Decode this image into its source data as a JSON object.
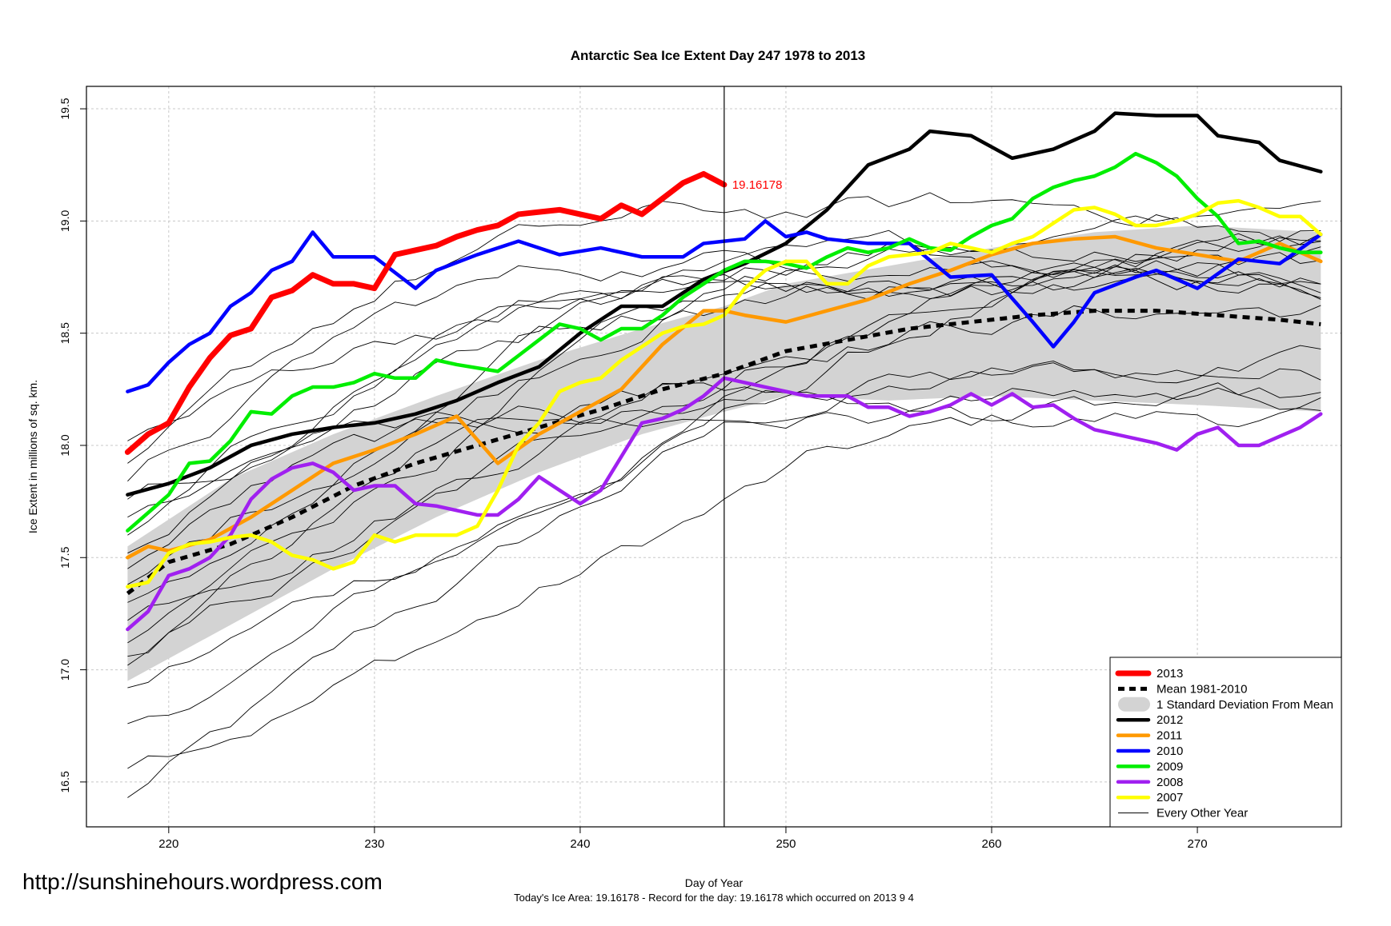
{
  "chart_data": {
    "type": "line",
    "title": "Antarctic Sea Ice Extent Day 247 1978 to 2013",
    "xlabel": "Day of Year",
    "ylabel": "Ice Extent in millions of sq. km.",
    "xlim": [
      216,
      277
    ],
    "ylim": [
      16.3,
      19.6
    ],
    "xticks": [
      220,
      230,
      240,
      250,
      260,
      270
    ],
    "yticks": [
      16.5,
      17.0,
      17.5,
      18.0,
      18.5,
      19.0,
      19.5
    ],
    "grid": true,
    "current_day": 247,
    "current_value": 19.16178,
    "current_value_label": "19.16178",
    "footer": "Today's Ice Area: 19.16178  - Record for the day: 19.16178 which occurred on 2013 9 4",
    "watermark": "http://sunshinehours.wordpress.com",
    "legend_position": "bottom-right",
    "legend": [
      {
        "label": "2013",
        "color": "#ff0000",
        "style": "thick"
      },
      {
        "label": "Mean 1981-2010",
        "color": "#000000",
        "style": "dashed"
      },
      {
        "label": "1 Standard Deviation From Mean",
        "color": "#d3d3d3",
        "style": "band"
      },
      {
        "label": "2012",
        "color": "#000000",
        "style": "thick"
      },
      {
        "label": "2011",
        "color": "#ff9900",
        "style": "thick"
      },
      {
        "label": "2010",
        "color": "#0000ff",
        "style": "thick"
      },
      {
        "label": "2009",
        "color": "#00ee00",
        "style": "thick"
      },
      {
        "label": "2008",
        "color": "#a020f0",
        "style": "thick"
      },
      {
        "label": "2007",
        "color": "#ffff00",
        "style": "thick"
      },
      {
        "label": "Every Other Year",
        "color": "#000000",
        "style": "thin"
      }
    ],
    "band": {
      "x": [
        218,
        223,
        228,
        233,
        238,
        243,
        247,
        250,
        255,
        260,
        265,
        270,
        276
      ],
      "upper": [
        17.55,
        17.85,
        18.05,
        18.22,
        18.38,
        18.52,
        18.62,
        18.72,
        18.8,
        18.88,
        18.95,
        18.98,
        18.95
      ],
      "lower": [
        16.95,
        17.2,
        17.45,
        17.68,
        17.88,
        18.05,
        18.15,
        18.22,
        18.2,
        18.22,
        18.2,
        18.18,
        18.15
      ]
    },
    "series": [
      {
        "name": "Mean 1981-2010",
        "color": "#000000",
        "style": "dashed",
        "x": [
          218,
          220,
          223,
          226,
          229,
          232,
          235,
          238,
          241,
          244,
          247,
          250,
          253,
          256,
          259,
          262,
          265,
          268,
          271,
          274,
          276
        ],
        "y": [
          17.34,
          17.48,
          17.56,
          17.68,
          17.82,
          17.92,
          18.0,
          18.08,
          18.16,
          18.25,
          18.32,
          18.42,
          18.47,
          18.52,
          18.55,
          18.58,
          18.6,
          18.6,
          18.58,
          18.56,
          18.54
        ]
      },
      {
        "name": "2012",
        "color": "#000000",
        "style": "thick",
        "x": [
          218,
          220,
          222,
          224,
          226,
          228,
          230,
          232,
          234,
          236,
          238,
          240,
          242,
          244,
          246,
          248,
          250,
          252,
          254,
          256,
          257,
          259,
          261,
          263,
          265,
          266,
          268,
          270,
          271,
          273,
          274,
          276
        ],
        "y": [
          17.78,
          17.83,
          17.9,
          18.0,
          18.05,
          18.08,
          18.1,
          18.14,
          18.2,
          18.28,
          18.35,
          18.5,
          18.62,
          18.62,
          18.74,
          18.81,
          18.9,
          19.05,
          19.25,
          19.32,
          19.4,
          19.38,
          19.28,
          19.32,
          19.4,
          19.48,
          19.47,
          19.47,
          19.38,
          19.35,
          19.27,
          19.22
        ]
      },
      {
        "name": "2011",
        "color": "#ff9900",
        "style": "thick",
        "x": [
          218,
          219,
          220,
          222,
          224,
          226,
          228,
          230,
          232,
          234,
          236,
          238,
          240,
          242,
          244,
          246,
          247,
          248,
          250,
          252,
          254,
          256,
          258,
          260,
          262,
          264,
          266,
          268,
          270,
          272,
          274,
          276
        ],
        "y": [
          17.5,
          17.55,
          17.53,
          17.58,
          17.68,
          17.8,
          17.92,
          17.98,
          18.05,
          18.13,
          17.92,
          18.05,
          18.15,
          18.25,
          18.45,
          18.6,
          18.6,
          18.58,
          18.55,
          18.6,
          18.65,
          18.72,
          18.78,
          18.85,
          18.9,
          18.92,
          18.93,
          18.88,
          18.85,
          18.82,
          18.9,
          18.82
        ]
      },
      {
        "name": "2010",
        "color": "#0000ff",
        "style": "thick",
        "x": [
          218,
          219,
          220,
          221,
          222,
          223,
          224,
          225,
          226,
          227,
          228,
          229,
          230,
          232,
          233,
          235,
          237,
          239,
          241,
          243,
          245,
          246,
          247,
          248,
          249,
          250,
          251,
          252,
          254,
          256,
          258,
          260,
          262,
          263,
          264,
          265,
          267,
          268,
          270,
          272,
          274,
          276
        ],
        "y": [
          18.24,
          18.27,
          18.37,
          18.45,
          18.5,
          18.62,
          18.68,
          18.78,
          18.82,
          18.95,
          18.84,
          18.84,
          18.84,
          18.7,
          18.78,
          18.85,
          18.91,
          18.85,
          18.88,
          18.84,
          18.84,
          18.9,
          18.91,
          18.92,
          19.0,
          18.93,
          18.95,
          18.92,
          18.9,
          18.9,
          18.75,
          18.76,
          18.55,
          18.44,
          18.55,
          18.68,
          18.75,
          18.78,
          18.7,
          18.83,
          18.81,
          18.94
        ]
      },
      {
        "name": "2009",
        "color": "#00ee00",
        "style": "thick",
        "x": [
          218,
          219,
          220,
          221,
          222,
          223,
          224,
          225,
          226,
          227,
          228,
          229,
          230,
          231,
          232,
          233,
          234,
          236,
          237,
          238,
          239,
          240,
          241,
          242,
          243,
          244,
          245,
          246,
          247,
          248,
          249,
          250,
          251,
          252,
          253,
          254,
          255,
          256,
          257,
          258,
          259,
          260,
          261,
          262,
          263,
          264,
          265,
          266,
          267,
          268,
          269,
          270,
          271,
          272,
          273,
          274,
          275,
          276
        ],
        "y": [
          17.62,
          17.7,
          17.78,
          17.92,
          17.93,
          18.02,
          18.15,
          18.14,
          18.22,
          18.26,
          18.26,
          18.28,
          18.32,
          18.3,
          18.3,
          18.38,
          18.36,
          18.33,
          18.4,
          18.47,
          18.54,
          18.52,
          18.47,
          18.52,
          18.52,
          18.58,
          18.66,
          18.72,
          18.78,
          18.82,
          18.82,
          18.81,
          18.79,
          18.84,
          18.88,
          18.86,
          18.88,
          18.92,
          18.88,
          18.87,
          18.93,
          18.98,
          19.01,
          19.1,
          19.15,
          19.18,
          19.2,
          19.24,
          19.3,
          19.26,
          19.2,
          19.1,
          19.02,
          18.9,
          18.91,
          18.88,
          18.86,
          18.86
        ]
      },
      {
        "name": "2008",
        "color": "#a020f0",
        "style": "thick",
        "x": [
          218,
          219,
          220,
          221,
          222,
          223,
          224,
          225,
          226,
          227,
          228,
          229,
          230,
          231,
          232,
          233,
          234,
          235,
          236,
          237,
          238,
          239,
          240,
          241,
          242,
          243,
          244,
          245,
          246,
          247,
          248,
          249,
          250,
          251,
          252,
          253,
          254,
          255,
          256,
          257,
          258,
          259,
          260,
          261,
          262,
          263,
          264,
          265,
          266,
          267,
          268,
          269,
          270,
          271,
          272,
          273,
          274,
          275,
          276
        ],
        "y": [
          17.18,
          17.26,
          17.42,
          17.45,
          17.5,
          17.6,
          17.76,
          17.85,
          17.9,
          17.92,
          17.88,
          17.8,
          17.82,
          17.82,
          17.74,
          17.73,
          17.71,
          17.69,
          17.69,
          17.76,
          17.86,
          17.8,
          17.74,
          17.8,
          17.95,
          18.1,
          18.12,
          18.16,
          18.22,
          18.3,
          18.28,
          18.26,
          18.24,
          18.22,
          18.22,
          18.22,
          18.17,
          18.17,
          18.13,
          18.15,
          18.18,
          18.23,
          18.18,
          18.23,
          18.17,
          18.18,
          18.12,
          18.07,
          18.05,
          18.03,
          18.01,
          17.98,
          18.05,
          18.08,
          18.0,
          18.0,
          18.04,
          18.08,
          18.14
        ]
      },
      {
        "name": "2007",
        "color": "#ffff00",
        "style": "thick",
        "x": [
          218,
          219,
          220,
          221,
          222,
          223,
          224,
          225,
          226,
          227,
          228,
          229,
          230,
          231,
          232,
          233,
          234,
          235,
          236,
          237,
          238,
          239,
          240,
          241,
          242,
          243,
          244,
          245,
          246,
          247,
          248,
          249,
          250,
          251,
          252,
          253,
          254,
          255,
          256,
          257,
          258,
          259,
          260,
          261,
          262,
          263,
          264,
          265,
          266,
          267,
          268,
          269,
          270,
          271,
          272,
          273,
          274,
          275,
          276
        ],
        "y": [
          17.37,
          17.39,
          17.52,
          17.56,
          17.57,
          17.59,
          17.6,
          17.57,
          17.51,
          17.49,
          17.45,
          17.48,
          17.6,
          17.57,
          17.6,
          17.6,
          17.6,
          17.64,
          17.8,
          18.0,
          18.1,
          18.24,
          18.28,
          18.3,
          18.38,
          18.44,
          18.5,
          18.53,
          18.54,
          18.58,
          18.7,
          18.78,
          18.82,
          18.82,
          18.72,
          18.72,
          18.8,
          18.84,
          18.85,
          18.86,
          18.9,
          18.88,
          18.86,
          18.9,
          18.93,
          18.99,
          19.05,
          19.06,
          19.03,
          18.98,
          18.98,
          19.0,
          19.03,
          19.08,
          19.09,
          19.06,
          19.02,
          19.02,
          18.94
        ]
      },
      {
        "name": "2013",
        "color": "#ff0000",
        "style": "thick",
        "x": [
          218,
          219,
          220,
          221,
          222,
          223,
          224,
          225,
          226,
          227,
          228,
          229,
          230,
          231,
          232,
          233,
          234,
          235,
          236,
          237,
          238,
          239,
          240,
          241,
          242,
          243,
          244,
          245,
          246,
          247
        ],
        "y": [
          17.97,
          18.05,
          18.1,
          18.26,
          18.39,
          18.49,
          18.52,
          18.66,
          18.69,
          18.76,
          18.72,
          18.72,
          18.7,
          18.85,
          18.87,
          18.89,
          18.93,
          18.96,
          18.98,
          19.03,
          19.04,
          19.05,
          19.03,
          19.01,
          19.07,
          19.03,
          19.1,
          19.17,
          19.21,
          19.16178
        ]
      }
    ]
  }
}
